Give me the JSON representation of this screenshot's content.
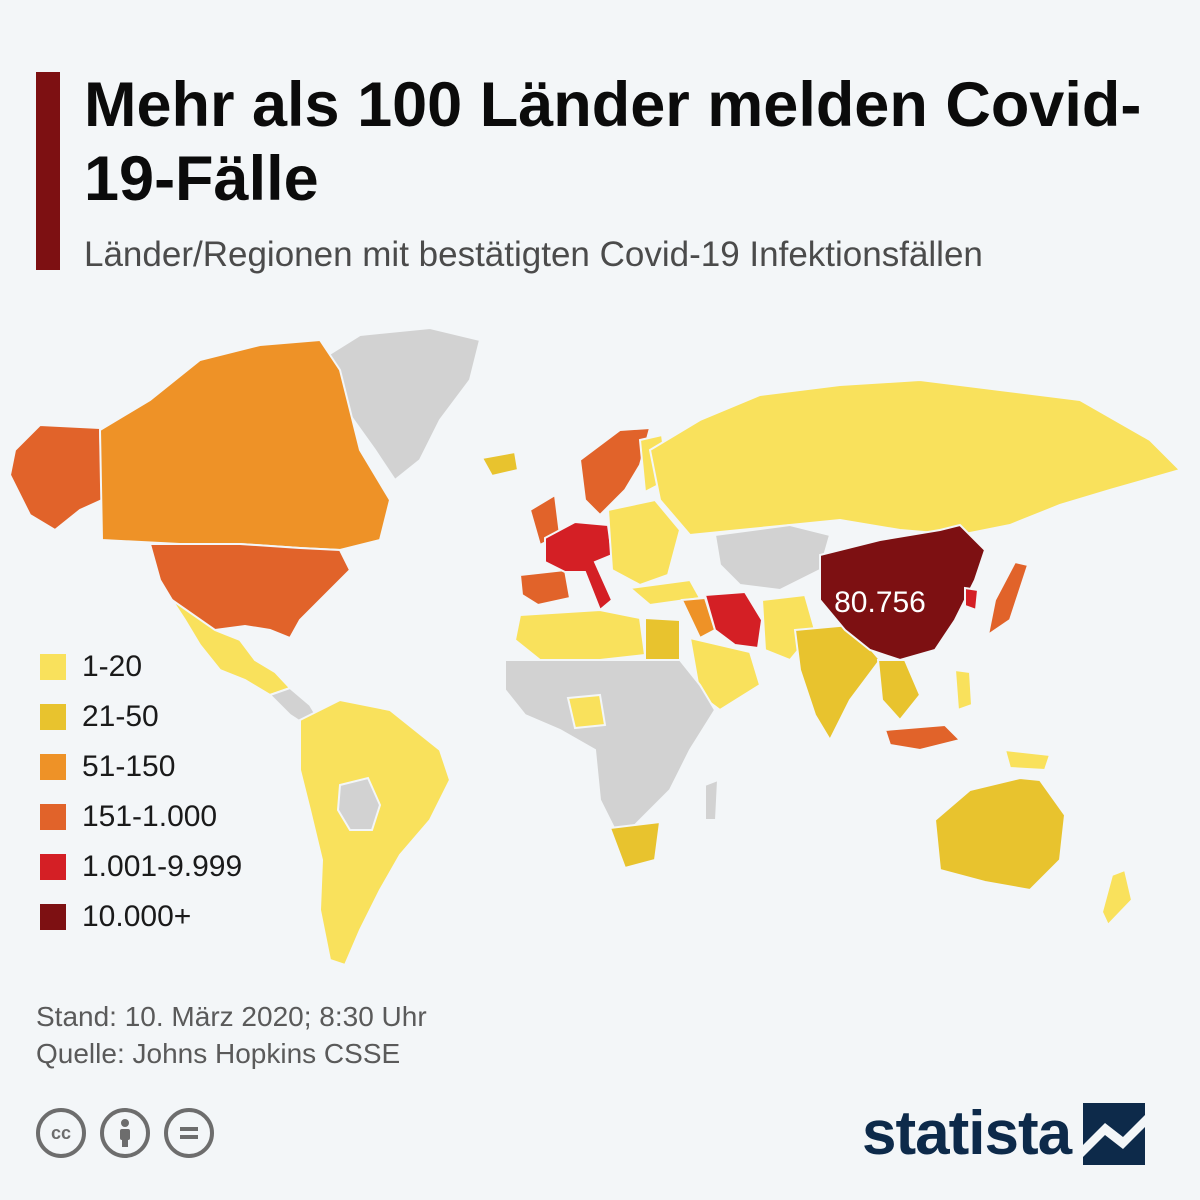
{
  "header": {
    "title": "Mehr als 100 Länder melden Covid-19-Fälle",
    "subtitle": "Länder/Regionen mit bestätigten Covid-19 Infektionsfällen",
    "accent_color": "#7d1012"
  },
  "map": {
    "china_label": "80.756",
    "background_color": "#f3f6f8",
    "no_data_color": "#d2d2d2"
  },
  "legend": [
    {
      "label": "1-20",
      "color": "#f9e15c"
    },
    {
      "label": "21-50",
      "color": "#e8c32e"
    },
    {
      "label": "51-150",
      "color": "#ee9227"
    },
    {
      "label": "151-1.000",
      "color": "#e1632a"
    },
    {
      "label": "1.001-9.999",
      "color": "#d41f25"
    },
    {
      "label": "10.000+",
      "color": "#7d1012"
    }
  ],
  "footer": {
    "stand": "Stand: 10. März 2020; 8:30 Uhr",
    "source": "Quelle: Johns Hopkins CSSE"
  },
  "license_icons": [
    "cc-icon",
    "attribution-icon",
    "no-derivatives-icon"
  ],
  "brand": {
    "name": "statista",
    "color": "#0d2a4a"
  }
}
